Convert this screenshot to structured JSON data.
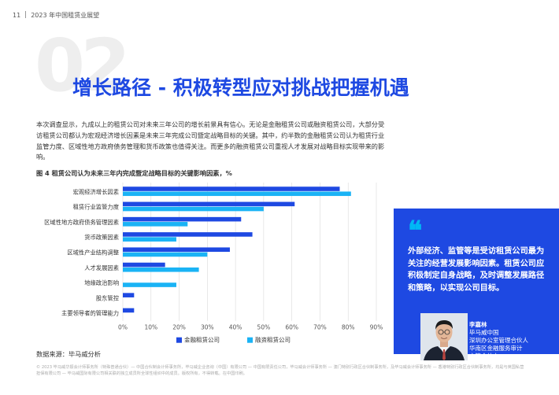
{
  "header": {
    "page_number": "11",
    "report_title": "2023 年中国租赁业展望"
  },
  "section": {
    "number": "02",
    "title": "增长路径 - 积极转型应对挑战把握机遇"
  },
  "intro": "本次调查显示，九成以上的租赁公司对未来三年公司的增长前景具有信心。无论是金融租赁公司或融资租赁公司，大部分受访租赁公司都认为宏观经济增长因素是未来三年完成公司暨定战略目标的关键。其中，约半数的金融租赁公司认为租赁行业监管力度、区域性地方政府债务管理和货币政策也值得关注。而更多的融资租赁公司重视人才发展对战略目标实现带来的影响。",
  "chart_caption": "图 4 租赁公司认为未来三年内完成暨定战略目标的关键影响因素，%",
  "chart_data": {
    "type": "bar",
    "orientation": "horizontal",
    "categories": [
      "宏观经济增长因素",
      "租赁行业监管力度",
      "区域性地方政府债务管理因素",
      "货币政策因素",
      "区域性产业结构调整",
      "人才发展因素",
      "地缘政治影响",
      "股东管控",
      "主要领导者的管理能力"
    ],
    "series": [
      {
        "name": "金融租赁公司",
        "values": [
          77,
          61,
          42,
          46,
          38,
          15,
          0,
          4,
          4
        ],
        "color": "#1e49e2"
      },
      {
        "name": "融资租赁公司",
        "values": [
          81,
          50,
          23,
          19,
          30,
          27,
          19,
          0,
          0
        ],
        "color": "#1ab3f5"
      }
    ],
    "xlim": [
      0,
      90
    ],
    "xticks": [
      "0%",
      "10%",
      "20%",
      "30%",
      "40%",
      "50%",
      "60%",
      "70%",
      "80%",
      "90%"
    ],
    "grid": true,
    "legend": "bottom"
  },
  "source_note": "数据来源：毕马威分析",
  "footer": "© 2023 毕马威华振会计师事务所（特殊普通合伙）— 中国合伙制会计师事务所，毕马威企业咨询（中国）有限公司 — 中国有限责任公司，毕马威会计师事务所 — 澳门特别行政区合伙制事务所，及毕马威会计师事务所 — 香港特别行政区合伙制事务所，均是与英国私营担保有限公司 — 毕马威国际有限公司相关联的独立成员所全球性组织中的成员。版权所有，不得转载。在中国印刷。",
  "quote": {
    "mark": "❝",
    "text": "外部经济、监管等是受访租赁公司最为关注的经营发展影响因素。租赁公司应积极制定自身战略，及时调整发展路径和策略，以实现公司目标。"
  },
  "person": {
    "name": "李嘉林",
    "lines": [
      "毕马威中国",
      "深圳办公室管理合伙人",
      "华南区金融服务审计",
      "主管合伙人"
    ]
  }
}
